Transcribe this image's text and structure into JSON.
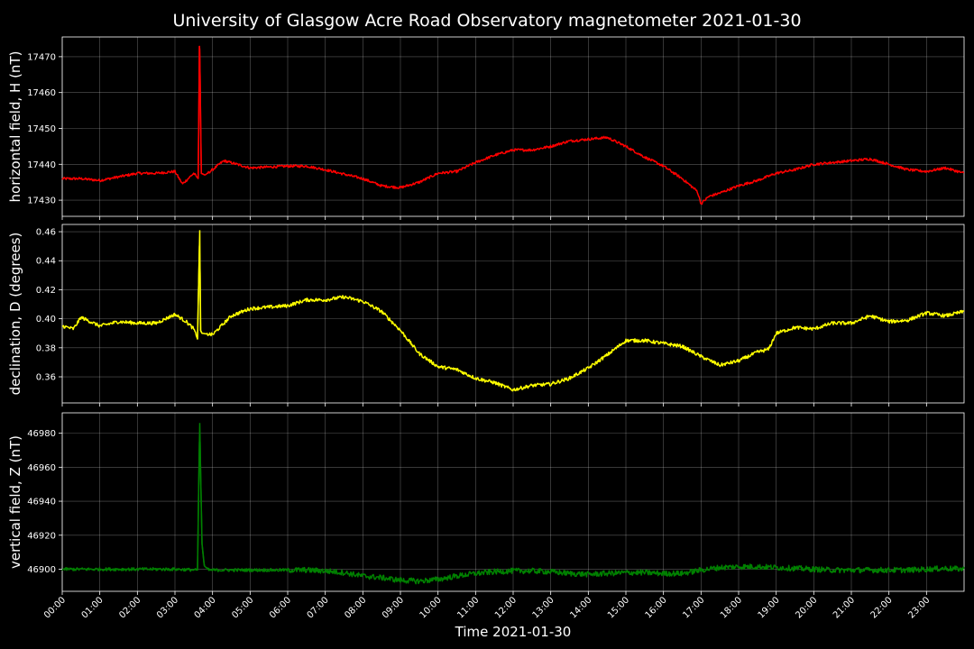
{
  "chart_data": {
    "type": "line",
    "title": "University of Glasgow Acre Road Observatory magnetometer 2021-01-30",
    "xlabel": "Time 2021-01-30",
    "x_ticks": [
      "00:00",
      "01:00",
      "02:00",
      "03:00",
      "04:00",
      "05:00",
      "06:00",
      "07:00",
      "08:00",
      "09:00",
      "10:00",
      "11:00",
      "12:00",
      "13:00",
      "14:00",
      "15:00",
      "16:00",
      "17:00",
      "18:00",
      "19:00",
      "20:00",
      "21:00",
      "22:00",
      "23:00"
    ],
    "xlim_hours": [
      0,
      24
    ],
    "grid": true,
    "panels": [
      {
        "ylabel": "horizontal field, H (nT)",
        "color": "#ff0000",
        "ylim": [
          17425.5,
          17475.5
        ],
        "y_ticks": [
          17430,
          17440,
          17450,
          17460,
          17470
        ],
        "y_tick_labels": [
          "17430",
          "17440",
          "17450",
          "17460",
          "17470"
        ],
        "x_hours": [
          0,
          0.5,
          1,
          1.5,
          2,
          2.5,
          3,
          3.2,
          3.5,
          3.62,
          3.65,
          3.66,
          3.7,
          3.8,
          4,
          4.3,
          5,
          6,
          6.5,
          7,
          8,
          8.5,
          9,
          9.5,
          10,
          10.5,
          11,
          11.5,
          12,
          12.5,
          13,
          13.5,
          14,
          14.5,
          15,
          15.5,
          16,
          16.5,
          16.9,
          17,
          17.2,
          17.5,
          18,
          18.5,
          19,
          19.5,
          20,
          20.5,
          21,
          21.5,
          22,
          22.5,
          23,
          23.5,
          24
        ],
        "values": [
          17436,
          17436,
          17435.5,
          17436.5,
          17437.5,
          17437.5,
          17438,
          17434.5,
          17437.5,
          17436,
          17473,
          17472,
          17437.5,
          17437,
          17438.5,
          17441,
          17439,
          17439.5,
          17439.5,
          17438.5,
          17436,
          17434,
          17433.5,
          17435,
          17437.5,
          17438,
          17440.5,
          17442.5,
          17444,
          17444,
          17445,
          17446.5,
          17447,
          17447.5,
          17445,
          17442,
          17439.5,
          17436,
          17432.5,
          17429,
          17431,
          17432,
          17434,
          17435.5,
          17437.5,
          17438.5,
          17440,
          17440.5,
          17441,
          17441.5,
          17440,
          17438.5,
          17438,
          17439,
          17437.5
        ]
      },
      {
        "ylabel": "declination, D (degrees)",
        "color": "#ffff00",
        "ylim": [
          0.342,
          0.465
        ],
        "y_ticks": [
          0.36,
          0.38,
          0.4,
          0.42,
          0.44,
          0.46
        ],
        "y_tick_labels": [
          "0.36",
          "0.38",
          "0.40",
          "0.42",
          "0.44",
          "0.46"
        ],
        "x_hours": [
          0,
          0.3,
          0.5,
          1,
          1.5,
          2,
          2.5,
          3,
          3.3,
          3.5,
          3.6,
          3.66,
          3.68,
          3.72,
          4,
          4.5,
          5,
          6,
          6.5,
          7,
          7.5,
          8,
          8.5,
          9,
          9.5,
          10,
          10.5,
          11,
          11.5,
          12,
          12.5,
          13,
          13.5,
          14,
          14.5,
          15,
          15.5,
          16,
          16.5,
          17,
          17.5,
          18,
          18.5,
          18.8,
          19,
          19.5,
          20,
          20.5,
          21,
          21.5,
          22,
          22.5,
          23,
          23.5,
          24
        ],
        "values": [
          0.395,
          0.393,
          0.401,
          0.395,
          0.398,
          0.397,
          0.397,
          0.403,
          0.398,
          0.393,
          0.386,
          0.461,
          0.392,
          0.39,
          0.389,
          0.402,
          0.407,
          0.409,
          0.413,
          0.413,
          0.415,
          0.412,
          0.405,
          0.392,
          0.376,
          0.367,
          0.365,
          0.359,
          0.356,
          0.351,
          0.354,
          0.355,
          0.359,
          0.366,
          0.375,
          0.385,
          0.385,
          0.383,
          0.381,
          0.374,
          0.368,
          0.371,
          0.377,
          0.379,
          0.39,
          0.394,
          0.393,
          0.397,
          0.397,
          0.402,
          0.398,
          0.399,
          0.404,
          0.402,
          0.405
        ]
      },
      {
        "ylabel": "vertical field, Z (nT)",
        "color": "#008000",
        "ylim": [
          46887,
          46992
        ],
        "y_ticks": [
          46900,
          46920,
          46940,
          46960,
          46980
        ],
        "y_tick_labels": [
          "46900",
          "46920",
          "46940",
          "46960",
          "46980"
        ],
        "x_hours": [
          0,
          1,
          2,
          3,
          3.6,
          3.64,
          3.66,
          3.68,
          3.72,
          3.78,
          3.9,
          4.5,
          5,
          6,
          6.5,
          7,
          7.5,
          8,
          8.5,
          9,
          9.5,
          10,
          10.5,
          11,
          11.5,
          12,
          12.5,
          13,
          13.5,
          14,
          14.5,
          15,
          15.5,
          16,
          16.5,
          17,
          17.5,
          18,
          18.5,
          19,
          19.5,
          20,
          20.5,
          21,
          21.5,
          22,
          22.5,
          23,
          23.5,
          24
        ],
        "values": [
          46900,
          46900,
          46900,
          46900,
          46899.5,
          46960,
          46986,
          46960,
          46915,
          46902,
          46899.5,
          46899.5,
          46899.5,
          46899.5,
          46899.5,
          46899,
          46898,
          46896,
          46895,
          46893.5,
          46893,
          46894,
          46896,
          46897.5,
          46898.5,
          46899,
          46899,
          46898.5,
          46897.5,
          46897,
          46897.5,
          46898,
          46898,
          46897.5,
          46897.5,
          46899.5,
          46901,
          46901.5,
          46901.5,
          46901,
          46900.5,
          46900,
          46899.5,
          46899.5,
          46899.5,
          46899.5,
          46899.5,
          46900,
          46900.5,
          46900
        ]
      }
    ]
  }
}
